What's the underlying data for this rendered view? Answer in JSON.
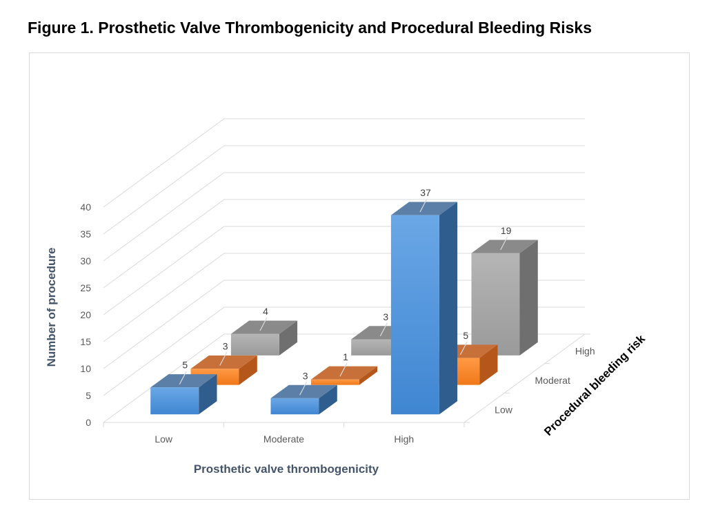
{
  "figure_title": "Figure 1.  Prosthetic Valve Thrombogenicity and Procedural Bleeding Risks",
  "chart_data": {
    "type": "bar",
    "subtype": "3d-column",
    "title": "",
    "categories": [
      "Low",
      "Moderate",
      "High"
    ],
    "xlabel": "Prosthetic valve thrombogenicity",
    "ylabel": "Number of procedure",
    "zlabel": "Procedural bleeding risk",
    "ylim": [
      0,
      40
    ],
    "yticks": [
      "0",
      "5",
      "10",
      "15",
      "20",
      "25",
      "30",
      "35",
      "40"
    ],
    "series": [
      {
        "name": "Low",
        "values": [
          5,
          3,
          37
        ],
        "color": "#4f8fd6"
      },
      {
        "name": "Moderate",
        "values": [
          3,
          1,
          5
        ],
        "color": "#f5822a"
      },
      {
        "name": "High",
        "values": [
          4,
          3,
          19
        ],
        "color": "#a6a6a6"
      }
    ],
    "series_axis_labels": [
      "Low",
      "Moderat",
      "High"
    ],
    "grid": true,
    "legend": "none"
  }
}
